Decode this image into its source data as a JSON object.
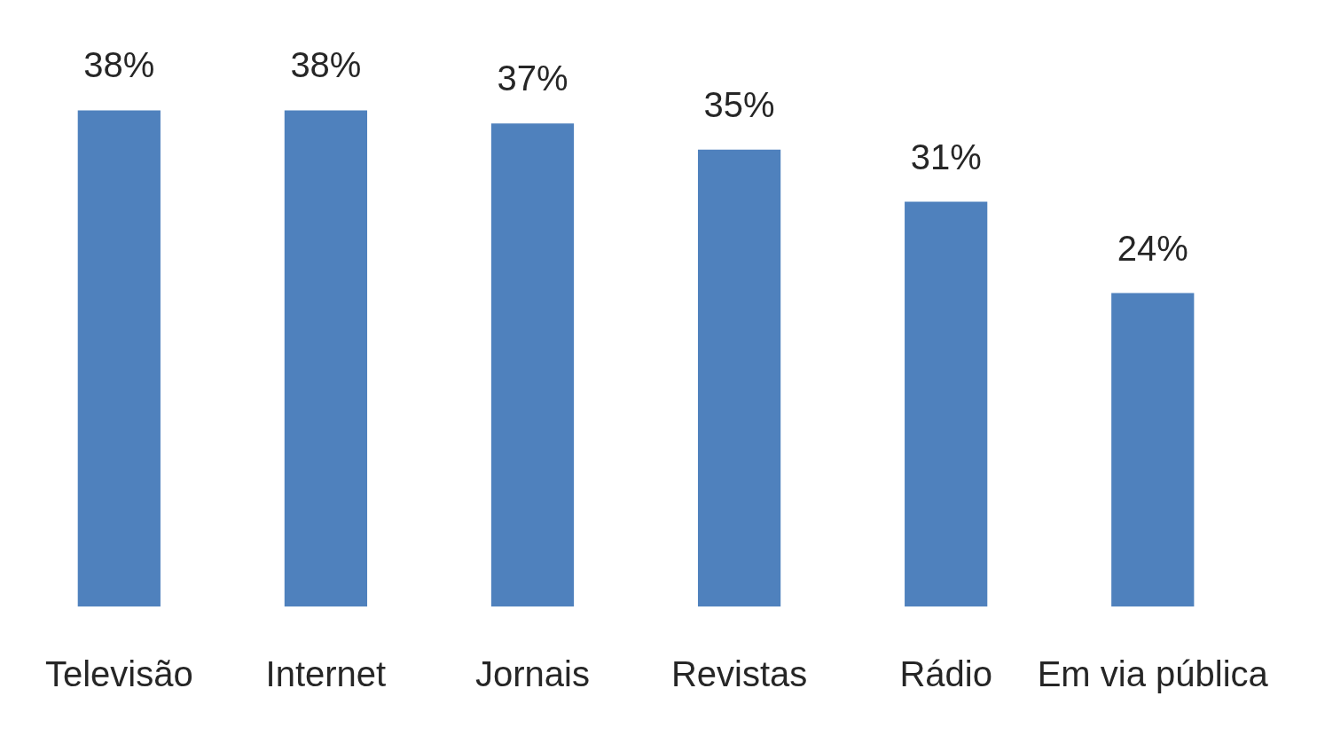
{
  "chart_data": {
    "type": "bar",
    "categories": [
      "Televisão",
      "Internet",
      "Jornais",
      "Revistas",
      "Rádio",
      "Em via pública"
    ],
    "values": [
      38,
      38,
      37,
      35,
      31,
      24
    ],
    "value_labels": [
      "38%",
      "38%",
      "37%",
      "35%",
      "31%",
      "24%"
    ],
    "color": "#4f81bd",
    "grid": false,
    "legend": false,
    "tick_labels": "x"
  }
}
